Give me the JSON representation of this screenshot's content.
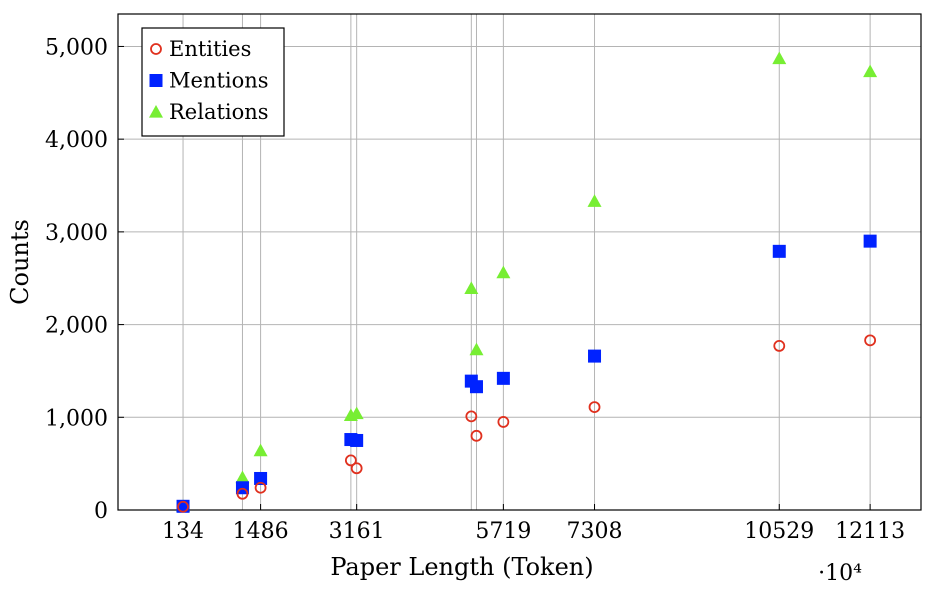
{
  "chart_data": {
    "type": "scatter",
    "title": "",
    "xlabel": "Paper Length (Token)",
    "ylabel": "Counts",
    "x_multiplier_label": "·10⁴",
    "x_tick_values": [
      134,
      1486,
      3161,
      5719,
      7308,
      10529,
      12113
    ],
    "x_tick_labels": [
      "134",
      "1486",
      "3161",
      "5719",
      "7308",
      "10529",
      "12113"
    ],
    "x_vertical_gridlines": [
      134,
      1170,
      1486,
      3060,
      3161,
      5160,
      5250,
      5719,
      7308,
      10529,
      12113
    ],
    "xlim": [
      -1000,
      13000
    ],
    "y_tick_values": [
      0,
      1000,
      2000,
      3000,
      4000,
      5000
    ],
    "y_tick_labels": [
      "0",
      "1,000",
      "2,000",
      "3,000",
      "4,000",
      "5,000"
    ],
    "ylim": [
      0,
      5350
    ],
    "grid": true,
    "legend_position": "top-left",
    "series": [
      {
        "name": "Entities",
        "marker": "circle-open",
        "color": "#e0301e",
        "points": [
          {
            "x": 134,
            "y": 35
          },
          {
            "x": 1170,
            "y": 175
          },
          {
            "x": 1486,
            "y": 240
          },
          {
            "x": 3060,
            "y": 535
          },
          {
            "x": 3161,
            "y": 450
          },
          {
            "x": 5160,
            "y": 1010
          },
          {
            "x": 5250,
            "y": 800
          },
          {
            "x": 5719,
            "y": 950
          },
          {
            "x": 7308,
            "y": 1110
          },
          {
            "x": 10529,
            "y": 1770
          },
          {
            "x": 12113,
            "y": 1830
          }
        ]
      },
      {
        "name": "Mentions",
        "marker": "square",
        "color": "#0022ff",
        "points": [
          {
            "x": 134,
            "y": 40
          },
          {
            "x": 1170,
            "y": 240
          },
          {
            "x": 1486,
            "y": 340
          },
          {
            "x": 3060,
            "y": 760
          },
          {
            "x": 3161,
            "y": 750
          },
          {
            "x": 5160,
            "y": 1390
          },
          {
            "x": 5250,
            "y": 1330
          },
          {
            "x": 5719,
            "y": 1420
          },
          {
            "x": 7308,
            "y": 1660
          },
          {
            "x": 10529,
            "y": 2790
          },
          {
            "x": 12113,
            "y": 2900
          }
        ]
      },
      {
        "name": "Relations",
        "marker": "triangle",
        "color": "#77ee33",
        "points": [
          {
            "x": 134,
            "y": 40
          },
          {
            "x": 1170,
            "y": 350
          },
          {
            "x": 1486,
            "y": 640
          },
          {
            "x": 3060,
            "y": 1020
          },
          {
            "x": 3161,
            "y": 1040
          },
          {
            "x": 5160,
            "y": 2390
          },
          {
            "x": 5250,
            "y": 1730
          },
          {
            "x": 5719,
            "y": 2560
          },
          {
            "x": 7308,
            "y": 3330
          },
          {
            "x": 10529,
            "y": 4870
          },
          {
            "x": 12113,
            "y": 4730
          }
        ]
      }
    ]
  }
}
